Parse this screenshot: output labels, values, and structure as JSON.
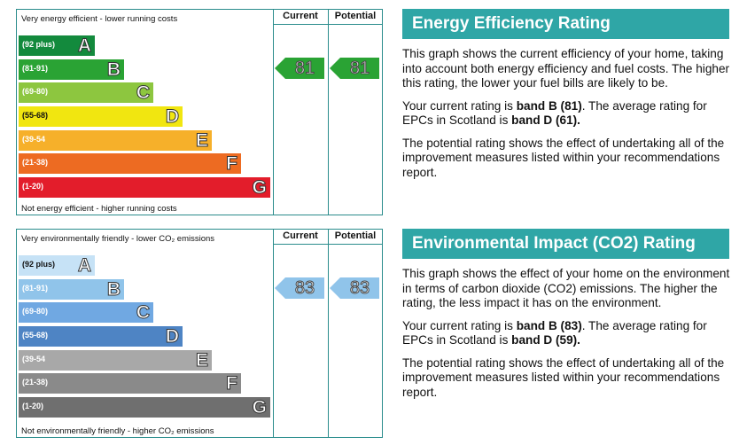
{
  "chart_data": [
    {
      "type": "bar",
      "top_label": "Very energy efficient - lower running costs",
      "bottom_label": "Not energy efficient - higher running costs",
      "columns": [
        "Current",
        "Potential"
      ],
      "bands": [
        {
          "range": "(92 plus)",
          "letter": "A",
          "color": "#138a3d"
        },
        {
          "range": "(81-91)",
          "letter": "B",
          "color": "#2aa334"
        },
        {
          "range": "(69-80)",
          "letter": "C",
          "color": "#8dc63f"
        },
        {
          "range": "(55-68)",
          "letter": "D",
          "color": "#f1e610"
        },
        {
          "range": "(39-54",
          "letter": "E",
          "color": "#f6b02a"
        },
        {
          "range": "(21-38)",
          "letter": "F",
          "color": "#ed6b22"
        },
        {
          "range": "(1-20)",
          "letter": "G",
          "color": "#e31d2b"
        }
      ],
      "current": {
        "value": 81,
        "band": "B",
        "color": "#2aa334"
      },
      "potential": {
        "value": 81,
        "band": "B",
        "color": "#2aa334"
      }
    },
    {
      "type": "bar",
      "top_label": "Very environmentally friendly - lower CO₂ emissions",
      "bottom_label": "Not environmentally friendly - higher CO₂ emissions",
      "columns": [
        "Current",
        "Potential"
      ],
      "bands": [
        {
          "range": "(92 plus)",
          "letter": "A",
          "color": "#c6e2f6"
        },
        {
          "range": "(81-91)",
          "letter": "B",
          "color": "#90c4ea"
        },
        {
          "range": "(69-80)",
          "letter": "C",
          "color": "#70a8e2"
        },
        {
          "range": "(55-68)",
          "letter": "D",
          "color": "#4e84c4"
        },
        {
          "range": "(39-54",
          "letter": "E",
          "color": "#a8a8a8"
        },
        {
          "range": "(21-38)",
          "letter": "F",
          "color": "#8a8a8a"
        },
        {
          "range": "(1-20)",
          "letter": "G",
          "color": "#6f6f6f"
        }
      ],
      "current": {
        "value": 83,
        "band": "B",
        "color": "#90c4ea"
      },
      "potential": {
        "value": 83,
        "band": "B",
        "color": "#90c4ea"
      }
    }
  ],
  "energy_panel": {
    "title": "Energy Efficiency Rating",
    "p1": "This graph shows the current efficiency of your home, taking into account both energy efficiency and fuel costs. The higher this rating, the lower your fuel bills are likely to be.",
    "p2_pre": "Your current rating is ",
    "p2_b1": "band B (81)",
    "p2_mid": ". The average rating for EPCs in Scotland is ",
    "p2_b2": "band D (61).",
    "p3": "The potential rating shows the effect of undertaking all of the improvement measures listed within your recommendations report."
  },
  "env_panel": {
    "title": "Environmental Impact (CO2) Rating",
    "p1": "This graph shows the effect of your home on the environment in terms of carbon dioxide (CO2) emissions. The higher the rating, the less impact it has on the environment.",
    "p2_pre": "Your current rating is ",
    "p2_b1": "band B (83)",
    "p2_mid": ". The average rating for EPCs in Scotland is ",
    "p2_b2": "band D (59).",
    "p3": "The potential rating shows the effect of undertaking all of the improvement measures listed within your recommendations report."
  }
}
